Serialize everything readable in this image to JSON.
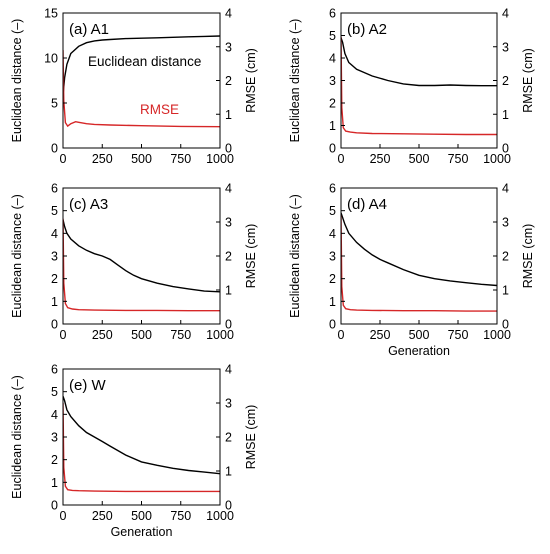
{
  "chart_data": [
    {
      "type": "line",
      "panel": "(a) A1",
      "xlabel": "",
      "ylabel": "Euclidean distance (–)",
      "y2label": "RMSE (cm)",
      "xlim": [
        0,
        1000
      ],
      "ylim": [
        0,
        15
      ],
      "y2lim": [
        0,
        4
      ],
      "xticks": [
        0,
        250,
        500,
        750,
        1000
      ],
      "yticks": [
        0,
        5,
        10,
        15
      ],
      "y2ticks": [
        0,
        1,
        2,
        3,
        4
      ],
      "annotations": [
        {
          "text": "Euclidean distance",
          "color": "#000000"
        },
        {
          "text": "RMSE",
          "color": "#d62728"
        }
      ],
      "series": [
        {
          "name": "Euclidean distance",
          "axis": "left",
          "color": "#000000",
          "x": [
            0,
            10,
            25,
            50,
            100,
            150,
            200,
            250,
            300,
            400,
            500,
            600,
            700,
            800,
            900,
            1000
          ],
          "values": [
            5.8,
            7.8,
            9.3,
            10.5,
            11.3,
            11.7,
            11.9,
            12.0,
            12.05,
            12.15,
            12.2,
            12.25,
            12.3,
            12.35,
            12.4,
            12.45
          ]
        },
        {
          "name": "RMSE",
          "axis": "right",
          "color": "#d62728",
          "x": [
            0,
            5,
            15,
            30,
            50,
            80,
            100,
            150,
            200,
            300,
            500,
            750,
            1000
          ],
          "values": [
            2.9,
            1.4,
            0.75,
            0.65,
            0.72,
            0.78,
            0.76,
            0.72,
            0.7,
            0.68,
            0.66,
            0.64,
            0.63
          ]
        }
      ]
    },
    {
      "type": "line",
      "panel": "(b) A2",
      "xlabel": "",
      "ylabel": "Euclidean distance (–)",
      "y2label": "RMSE (cm)",
      "xlim": [
        0,
        1000
      ],
      "ylim": [
        0,
        6
      ],
      "y2lim": [
        0,
        4
      ],
      "xticks": [
        0,
        250,
        500,
        750,
        1000
      ],
      "yticks": [
        0,
        1,
        2,
        3,
        4,
        5,
        6
      ],
      "y2ticks": [
        0,
        1,
        2,
        3,
        4
      ],
      "series": [
        {
          "name": "Euclidean distance",
          "axis": "left",
          "color": "#000000",
          "x": [
            0,
            10,
            25,
            50,
            100,
            150,
            200,
            300,
            400,
            500,
            600,
            700,
            800,
            900,
            1000
          ],
          "values": [
            4.9,
            4.7,
            4.2,
            3.8,
            3.5,
            3.35,
            3.2,
            3.0,
            2.85,
            2.78,
            2.78,
            2.8,
            2.78,
            2.77,
            2.77
          ]
        },
        {
          "name": "RMSE",
          "axis": "right",
          "color": "#d62728",
          "x": [
            0,
            5,
            15,
            30,
            60,
            100,
            200,
            400,
            600,
            800,
            1000
          ],
          "values": [
            3.3,
            1.2,
            0.6,
            0.5,
            0.47,
            0.45,
            0.43,
            0.42,
            0.41,
            0.4,
            0.4
          ]
        }
      ]
    },
    {
      "type": "line",
      "panel": "(c) A3",
      "xlabel": "",
      "ylabel": "Euclidean distance (–)",
      "y2label": "RMSE (cm)",
      "xlim": [
        0,
        1000
      ],
      "ylim": [
        0,
        6
      ],
      "y2lim": [
        0,
        4
      ],
      "xticks": [
        0,
        250,
        500,
        750,
        1000
      ],
      "yticks": [
        0,
        1,
        2,
        3,
        4,
        5,
        6
      ],
      "y2ticks": [
        0,
        1,
        2,
        3,
        4
      ],
      "series": [
        {
          "name": "Euclidean distance",
          "axis": "left",
          "color": "#000000",
          "x": [
            0,
            10,
            25,
            50,
            100,
            150,
            200,
            250,
            300,
            350,
            400,
            450,
            500,
            600,
            700,
            800,
            900,
            1000
          ],
          "values": [
            4.6,
            4.3,
            4.0,
            3.75,
            3.45,
            3.25,
            3.1,
            3.0,
            2.85,
            2.6,
            2.35,
            2.15,
            2.0,
            1.8,
            1.65,
            1.55,
            1.45,
            1.42
          ]
        },
        {
          "name": "RMSE",
          "axis": "right",
          "color": "#d62728",
          "x": [
            0,
            5,
            15,
            30,
            60,
            100,
            200,
            400,
            600,
            800,
            1000
          ],
          "values": [
            3.1,
            1.2,
            0.6,
            0.48,
            0.44,
            0.42,
            0.41,
            0.4,
            0.4,
            0.39,
            0.39
          ]
        }
      ]
    },
    {
      "type": "line",
      "panel": "(d) A4",
      "xlabel": "Generation",
      "ylabel": "Euclidean distance (–)",
      "y2label": "RMSE (cm)",
      "xlim": [
        0,
        1000
      ],
      "ylim": [
        0,
        6
      ],
      "y2lim": [
        0,
        4
      ],
      "xticks": [
        0,
        250,
        500,
        750,
        1000
      ],
      "yticks": [
        0,
        1,
        2,
        3,
        4,
        5,
        6
      ],
      "y2ticks": [
        0,
        1,
        2,
        3,
        4
      ],
      "series": [
        {
          "name": "Euclidean distance",
          "axis": "left",
          "color": "#000000",
          "x": [
            0,
            10,
            25,
            50,
            100,
            150,
            200,
            250,
            300,
            400,
            500,
            600,
            700,
            800,
            900,
            1000
          ],
          "values": [
            4.9,
            4.7,
            4.4,
            4.0,
            3.6,
            3.3,
            3.05,
            2.85,
            2.7,
            2.4,
            2.15,
            2.0,
            1.9,
            1.82,
            1.75,
            1.7
          ]
        },
        {
          "name": "RMSE",
          "axis": "right",
          "color": "#d62728",
          "x": [
            0,
            5,
            15,
            30,
            60,
            100,
            200,
            400,
            600,
            800,
            1000
          ],
          "values": [
            3.2,
            1.1,
            0.55,
            0.45,
            0.42,
            0.41,
            0.4,
            0.39,
            0.39,
            0.38,
            0.38
          ]
        }
      ]
    },
    {
      "type": "line",
      "panel": "(e) W",
      "xlabel": "Generation",
      "ylabel": "Euclidean distance (–)",
      "y2label": "RMSE (cm)",
      "xlim": [
        0,
        1000
      ],
      "ylim": [
        0,
        6
      ],
      "y2lim": [
        0,
        4
      ],
      "xticks": [
        0,
        250,
        500,
        750,
        1000
      ],
      "yticks": [
        0,
        1,
        2,
        3,
        4,
        5,
        6
      ],
      "y2ticks": [
        0,
        1,
        2,
        3,
        4
      ],
      "series": [
        {
          "name": "Euclidean distance",
          "axis": "left",
          "color": "#000000",
          "x": [
            0,
            10,
            25,
            50,
            100,
            150,
            200,
            250,
            300,
            400,
            500,
            600,
            700,
            800,
            900,
            1000
          ],
          "values": [
            4.8,
            4.6,
            4.2,
            3.9,
            3.5,
            3.2,
            3.0,
            2.8,
            2.6,
            2.2,
            1.9,
            1.75,
            1.62,
            1.52,
            1.45,
            1.38
          ]
        },
        {
          "name": "RMSE",
          "axis": "right",
          "color": "#d62728",
          "x": [
            0,
            5,
            15,
            30,
            60,
            100,
            200,
            400,
            600,
            800,
            1000
          ],
          "values": [
            3.0,
            1.1,
            0.55,
            0.45,
            0.43,
            0.42,
            0.41,
            0.4,
            0.4,
            0.4,
            0.4
          ]
        }
      ]
    }
  ]
}
